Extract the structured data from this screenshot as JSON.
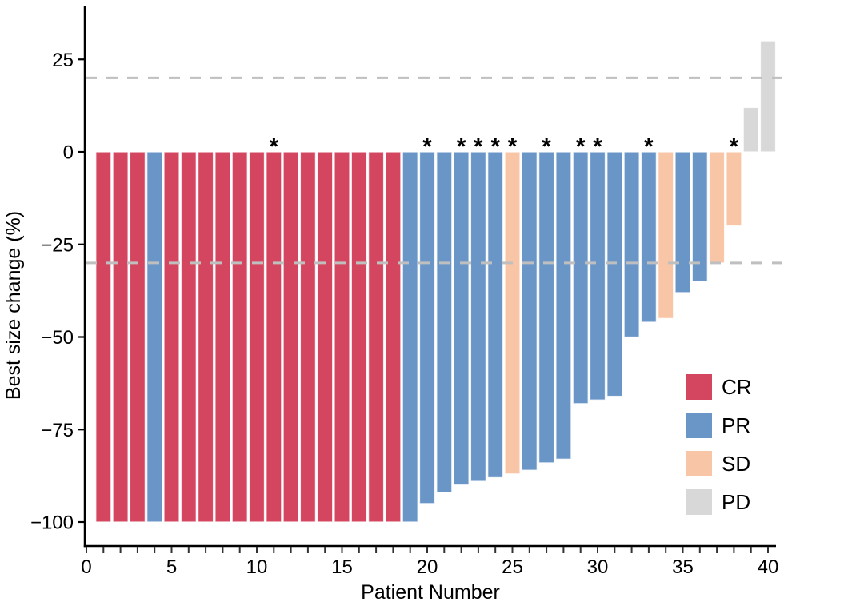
{
  "figure": {
    "background": "#ffffff"
  },
  "chart_data": {
    "type": "bar",
    "subtype": "waterfall",
    "title": "",
    "xlabel": "Patient Number",
    "ylabel": "Best size change (%)",
    "ylim": [
      -106,
      39
    ],
    "grid": false,
    "legend_position": "inside-right",
    "annotation_marker": "*",
    "y_ticks": [
      25,
      0,
      -25,
      -50,
      -75,
      -100
    ],
    "x_ticks_major": [
      0,
      5,
      10,
      15,
      20,
      25,
      30,
      35,
      40
    ],
    "x_minor_tick_step": 1,
    "x_range": [
      0,
      40
    ],
    "reference_lines": [
      {
        "y": 20,
        "style": "dashed",
        "color": "#BFBFBF"
      },
      {
        "y": -30,
        "style": "dashed",
        "color": "#BFBFBF"
      }
    ],
    "legend": [
      {
        "label": "CR",
        "color": "#D4465F"
      },
      {
        "label": "PR",
        "color": "#6996C7"
      },
      {
        "label": "SD",
        "color": "#F8C6A7"
      },
      {
        "label": "PD",
        "color": "#D8D8D8"
      }
    ],
    "patients": [
      {
        "n": 1,
        "value": -100,
        "response": "CR",
        "star": false
      },
      {
        "n": 2,
        "value": -100,
        "response": "CR",
        "star": false
      },
      {
        "n": 3,
        "value": -100,
        "response": "CR",
        "star": false
      },
      {
        "n": 4,
        "value": -100,
        "response": "PR",
        "star": false
      },
      {
        "n": 5,
        "value": -100,
        "response": "CR",
        "star": false
      },
      {
        "n": 6,
        "value": -100,
        "response": "CR",
        "star": false
      },
      {
        "n": 7,
        "value": -100,
        "response": "CR",
        "star": false
      },
      {
        "n": 8,
        "value": -100,
        "response": "CR",
        "star": false
      },
      {
        "n": 9,
        "value": -100,
        "response": "CR",
        "star": false
      },
      {
        "n": 10,
        "value": -100,
        "response": "CR",
        "star": false
      },
      {
        "n": 11,
        "value": -100,
        "response": "CR",
        "star": true
      },
      {
        "n": 12,
        "value": -100,
        "response": "CR",
        "star": false
      },
      {
        "n": 13,
        "value": -100,
        "response": "CR",
        "star": false
      },
      {
        "n": 14,
        "value": -100,
        "response": "CR",
        "star": false
      },
      {
        "n": 15,
        "value": -100,
        "response": "CR",
        "star": false
      },
      {
        "n": 16,
        "value": -100,
        "response": "CR",
        "star": false
      },
      {
        "n": 17,
        "value": -100,
        "response": "CR",
        "star": false
      },
      {
        "n": 18,
        "value": -100,
        "response": "CR",
        "star": false
      },
      {
        "n": 19,
        "value": -100,
        "response": "PR",
        "star": false
      },
      {
        "n": 20,
        "value": -95,
        "response": "PR",
        "star": true
      },
      {
        "n": 21,
        "value": -92,
        "response": "PR",
        "star": false
      },
      {
        "n": 22,
        "value": -90,
        "response": "PR",
        "star": true
      },
      {
        "n": 23,
        "value": -89,
        "response": "PR",
        "star": true
      },
      {
        "n": 24,
        "value": -88,
        "response": "PR",
        "star": true
      },
      {
        "n": 25,
        "value": -87,
        "response": "SD",
        "star": true
      },
      {
        "n": 26,
        "value": -86,
        "response": "PR",
        "star": false
      },
      {
        "n": 27,
        "value": -84,
        "response": "PR",
        "star": true
      },
      {
        "n": 28,
        "value": -83,
        "response": "PR",
        "star": false
      },
      {
        "n": 29,
        "value": -68,
        "response": "PR",
        "star": true
      },
      {
        "n": 30,
        "value": -67,
        "response": "PR",
        "star": true
      },
      {
        "n": 31,
        "value": -66,
        "response": "PR",
        "star": false
      },
      {
        "n": 32,
        "value": -50,
        "response": "PR",
        "star": false
      },
      {
        "n": 33,
        "value": -46,
        "response": "PR",
        "star": true
      },
      {
        "n": 34,
        "value": -45,
        "response": "SD",
        "star": false
      },
      {
        "n": 35,
        "value": -38,
        "response": "PR",
        "star": false
      },
      {
        "n": 36,
        "value": -35,
        "response": "PR",
        "star": false
      },
      {
        "n": 37,
        "value": -30,
        "response": "SD",
        "star": false
      },
      {
        "n": 38,
        "value": -20,
        "response": "SD",
        "star": true
      },
      {
        "n": 39,
        "value": 12,
        "response": "PD",
        "star": false
      },
      {
        "n": 40,
        "value": 30,
        "response": "PD",
        "star": false
      }
    ]
  }
}
